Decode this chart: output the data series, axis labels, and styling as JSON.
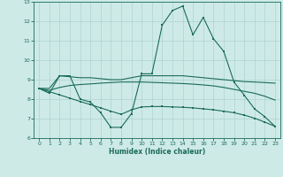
{
  "xlabel": "Humidex (Indice chaleur)",
  "bg_color": "#ceeae7",
  "line_color": "#1a6b5a",
  "grid_color": "#aed4d0",
  "xlim": [
    -0.5,
    23.5
  ],
  "ylim": [
    6,
    13
  ],
  "yticks": [
    6,
    7,
    8,
    9,
    10,
    11,
    12,
    13
  ],
  "xticks": [
    0,
    1,
    2,
    3,
    4,
    5,
    6,
    7,
    8,
    9,
    10,
    11,
    12,
    13,
    14,
    15,
    16,
    17,
    18,
    19,
    20,
    21,
    22,
    23
  ],
  "line1_x": [
    0,
    1,
    2,
    3,
    4,
    5,
    6,
    7,
    8,
    9,
    10,
    11,
    12,
    13,
    14,
    15,
    16,
    17,
    18,
    19,
    20,
    21,
    22,
    23
  ],
  "line1_y": [
    8.55,
    8.3,
    9.2,
    9.2,
    8.0,
    7.85,
    7.3,
    6.55,
    6.55,
    7.25,
    9.3,
    9.3,
    11.8,
    12.55,
    12.78,
    11.3,
    12.2,
    11.1,
    10.45,
    8.88,
    8.2,
    7.5,
    7.1,
    6.6
  ],
  "line2_x": [
    0,
    1,
    2,
    3,
    4,
    5,
    6,
    7,
    8,
    9,
    10,
    11,
    12,
    13,
    14,
    15,
    16,
    17,
    18,
    19,
    20,
    21,
    22,
    23
  ],
  "line2_y": [
    8.55,
    8.55,
    9.2,
    9.15,
    9.1,
    9.1,
    9.05,
    9.0,
    9.0,
    9.1,
    9.2,
    9.2,
    9.2,
    9.2,
    9.2,
    9.15,
    9.1,
    9.05,
    9.0,
    8.95,
    8.9,
    8.88,
    8.85,
    8.82
  ],
  "line3_x": [
    0,
    1,
    2,
    3,
    4,
    5,
    6,
    7,
    8,
    9,
    10,
    11,
    12,
    13,
    14,
    15,
    16,
    17,
    18,
    19,
    20,
    21,
    22,
    23
  ],
  "line3_y": [
    8.55,
    8.45,
    8.6,
    8.7,
    8.75,
    8.78,
    8.82,
    8.85,
    8.88,
    8.88,
    8.88,
    8.86,
    8.84,
    8.82,
    8.8,
    8.77,
    8.73,
    8.68,
    8.6,
    8.5,
    8.4,
    8.3,
    8.15,
    7.95
  ],
  "line4_x": [
    0,
    1,
    2,
    3,
    4,
    5,
    6,
    7,
    8,
    9,
    10,
    11,
    12,
    13,
    14,
    15,
    16,
    17,
    18,
    19,
    20,
    21,
    22,
    23
  ],
  "line4_y": [
    8.55,
    8.38,
    8.22,
    8.05,
    7.88,
    7.72,
    7.55,
    7.38,
    7.22,
    7.45,
    7.6,
    7.62,
    7.62,
    7.6,
    7.58,
    7.55,
    7.5,
    7.45,
    7.38,
    7.3,
    7.18,
    7.02,
    6.82,
    6.6
  ]
}
